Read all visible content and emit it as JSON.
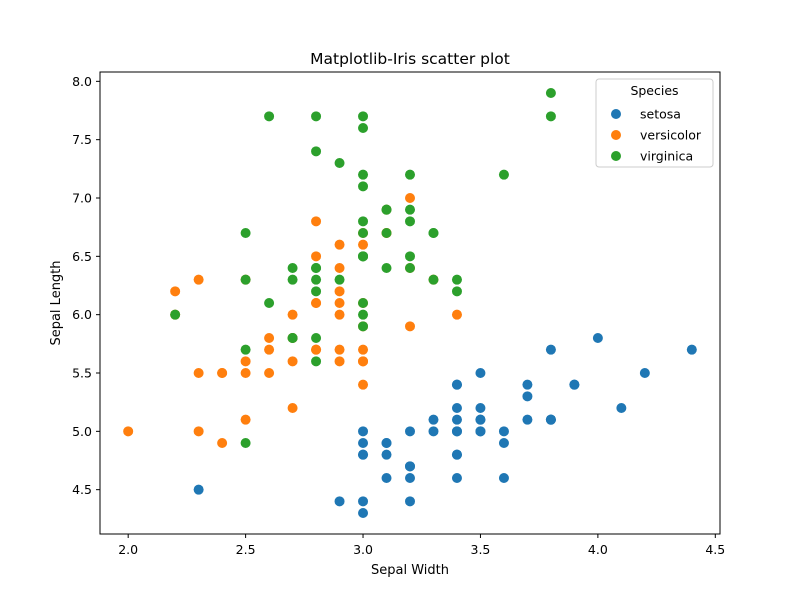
{
  "chart_data": {
    "type": "scatter",
    "title": "Matplotlib-Iris scatter plot",
    "xlabel": "Sepal Width",
    "ylabel": "Sepal Length",
    "xlim": [
      1.88,
      4.52
    ],
    "ylim": [
      4.12,
      8.08
    ],
    "xticks": [
      "2.0",
      "2.5",
      "3.0",
      "3.5",
      "4.0",
      "4.5"
    ],
    "yticks": [
      "4.5",
      "5.0",
      "5.5",
      "6.0",
      "6.5",
      "7.0",
      "7.5",
      "8.0"
    ],
    "grid": false,
    "legend": {
      "title": "Species",
      "placement": "top-right"
    },
    "series": [
      {
        "name": "setosa",
        "color": "#1f77b4",
        "points": [
          [
            3.5,
            5.1
          ],
          [
            3.0,
            4.9
          ],
          [
            3.2,
            4.7
          ],
          [
            3.1,
            4.6
          ],
          [
            3.6,
            5.0
          ],
          [
            3.9,
            5.4
          ],
          [
            3.4,
            4.6
          ],
          [
            3.4,
            5.0
          ],
          [
            2.9,
            4.4
          ],
          [
            3.1,
            4.9
          ],
          [
            3.7,
            5.4
          ],
          [
            3.4,
            4.8
          ],
          [
            3.0,
            4.8
          ],
          [
            3.0,
            4.3
          ],
          [
            4.0,
            5.8
          ],
          [
            4.4,
            5.7
          ],
          [
            3.9,
            5.4
          ],
          [
            3.5,
            5.1
          ],
          [
            3.8,
            5.7
          ],
          [
            3.8,
            5.1
          ],
          [
            3.4,
            5.4
          ],
          [
            3.7,
            5.1
          ],
          [
            3.6,
            4.6
          ],
          [
            3.3,
            5.1
          ],
          [
            3.4,
            4.8
          ],
          [
            3.0,
            5.0
          ],
          [
            3.4,
            5.0
          ],
          [
            3.5,
            5.2
          ],
          [
            3.4,
            5.2
          ],
          [
            3.2,
            4.7
          ],
          [
            3.1,
            4.8
          ],
          [
            3.4,
            5.4
          ],
          [
            4.1,
            5.2
          ],
          [
            4.2,
            5.5
          ],
          [
            3.1,
            4.9
          ],
          [
            3.2,
            5.0
          ],
          [
            3.5,
            5.5
          ],
          [
            3.6,
            4.9
          ],
          [
            3.0,
            4.4
          ],
          [
            3.4,
            5.1
          ],
          [
            3.5,
            5.0
          ],
          [
            2.3,
            4.5
          ],
          [
            3.2,
            4.4
          ],
          [
            3.5,
            5.0
          ],
          [
            3.8,
            5.1
          ],
          [
            3.0,
            4.8
          ],
          [
            3.8,
            5.1
          ],
          [
            3.2,
            4.6
          ],
          [
            3.7,
            5.3
          ],
          [
            3.3,
            5.0
          ]
        ]
      },
      {
        "name": "versicolor",
        "color": "#ff7f0e",
        "points": [
          [
            3.2,
            7.0
          ],
          [
            3.2,
            6.4
          ],
          [
            3.1,
            6.9
          ],
          [
            2.3,
            5.5
          ],
          [
            2.8,
            6.5
          ],
          [
            2.8,
            5.7
          ],
          [
            3.3,
            6.3
          ],
          [
            2.4,
            4.9
          ],
          [
            2.9,
            6.6
          ],
          [
            2.7,
            5.2
          ],
          [
            2.0,
            5.0
          ],
          [
            3.0,
            5.9
          ],
          [
            2.2,
            6.0
          ],
          [
            2.9,
            6.1
          ],
          [
            2.9,
            5.6
          ],
          [
            3.1,
            6.7
          ],
          [
            3.0,
            5.6
          ],
          [
            2.7,
            5.8
          ],
          [
            2.2,
            6.2
          ],
          [
            2.5,
            5.6
          ],
          [
            3.2,
            5.9
          ],
          [
            2.8,
            6.1
          ],
          [
            2.5,
            6.3
          ],
          [
            2.8,
            6.1
          ],
          [
            2.9,
            6.4
          ],
          [
            3.0,
            6.6
          ],
          [
            2.8,
            6.8
          ],
          [
            3.0,
            6.7
          ],
          [
            2.9,
            6.0
          ],
          [
            2.6,
            5.7
          ],
          [
            2.4,
            5.5
          ],
          [
            2.4,
            5.5
          ],
          [
            2.7,
            5.8
          ],
          [
            2.7,
            6.0
          ],
          [
            3.0,
            5.4
          ],
          [
            3.4,
            6.0
          ],
          [
            3.1,
            6.7
          ],
          [
            2.3,
            6.3
          ],
          [
            3.0,
            5.6
          ],
          [
            2.5,
            5.5
          ],
          [
            2.6,
            5.5
          ],
          [
            3.0,
            6.1
          ],
          [
            2.6,
            5.8
          ],
          [
            2.3,
            5.0
          ],
          [
            2.7,
            5.6
          ],
          [
            3.0,
            5.7
          ],
          [
            2.9,
            5.7
          ],
          [
            2.9,
            6.2
          ],
          [
            2.5,
            5.1
          ],
          [
            2.8,
            5.7
          ]
        ]
      },
      {
        "name": "virginica",
        "color": "#2ca02c",
        "points": [
          [
            3.3,
            6.3
          ],
          [
            2.7,
            5.8
          ],
          [
            3.0,
            7.1
          ],
          [
            2.9,
            6.3
          ],
          [
            3.0,
            6.5
          ],
          [
            3.0,
            7.6
          ],
          [
            2.5,
            4.9
          ],
          [
            2.9,
            7.3
          ],
          [
            2.5,
            6.7
          ],
          [
            3.6,
            7.2
          ],
          [
            3.2,
            6.5
          ],
          [
            2.7,
            6.4
          ],
          [
            3.0,
            6.8
          ],
          [
            2.5,
            5.7
          ],
          [
            2.8,
            5.8
          ],
          [
            3.2,
            6.4
          ],
          [
            3.0,
            6.5
          ],
          [
            3.8,
            7.7
          ],
          [
            2.6,
            7.7
          ],
          [
            2.2,
            6.0
          ],
          [
            3.2,
            6.9
          ],
          [
            2.8,
            5.6
          ],
          [
            2.8,
            7.7
          ],
          [
            2.7,
            6.3
          ],
          [
            3.3,
            6.7
          ],
          [
            3.2,
            7.2
          ],
          [
            2.8,
            6.2
          ],
          [
            3.0,
            6.1
          ],
          [
            2.8,
            6.4
          ],
          [
            3.0,
            7.2
          ],
          [
            2.8,
            7.4
          ],
          [
            3.8,
            7.9
          ],
          [
            2.8,
            6.4
          ],
          [
            2.8,
            6.3
          ],
          [
            2.6,
            6.1
          ],
          [
            3.0,
            7.7
          ],
          [
            3.4,
            6.3
          ],
          [
            3.1,
            6.4
          ],
          [
            3.0,
            6.0
          ],
          [
            3.1,
            6.9
          ],
          [
            3.1,
            6.7
          ],
          [
            3.1,
            6.9
          ],
          [
            2.7,
            5.8
          ],
          [
            3.2,
            6.8
          ],
          [
            3.3,
            6.7
          ],
          [
            3.0,
            6.7
          ],
          [
            2.5,
            6.3
          ],
          [
            3.0,
            6.5
          ],
          [
            3.4,
            6.2
          ],
          [
            3.0,
            5.9
          ]
        ]
      }
    ]
  }
}
